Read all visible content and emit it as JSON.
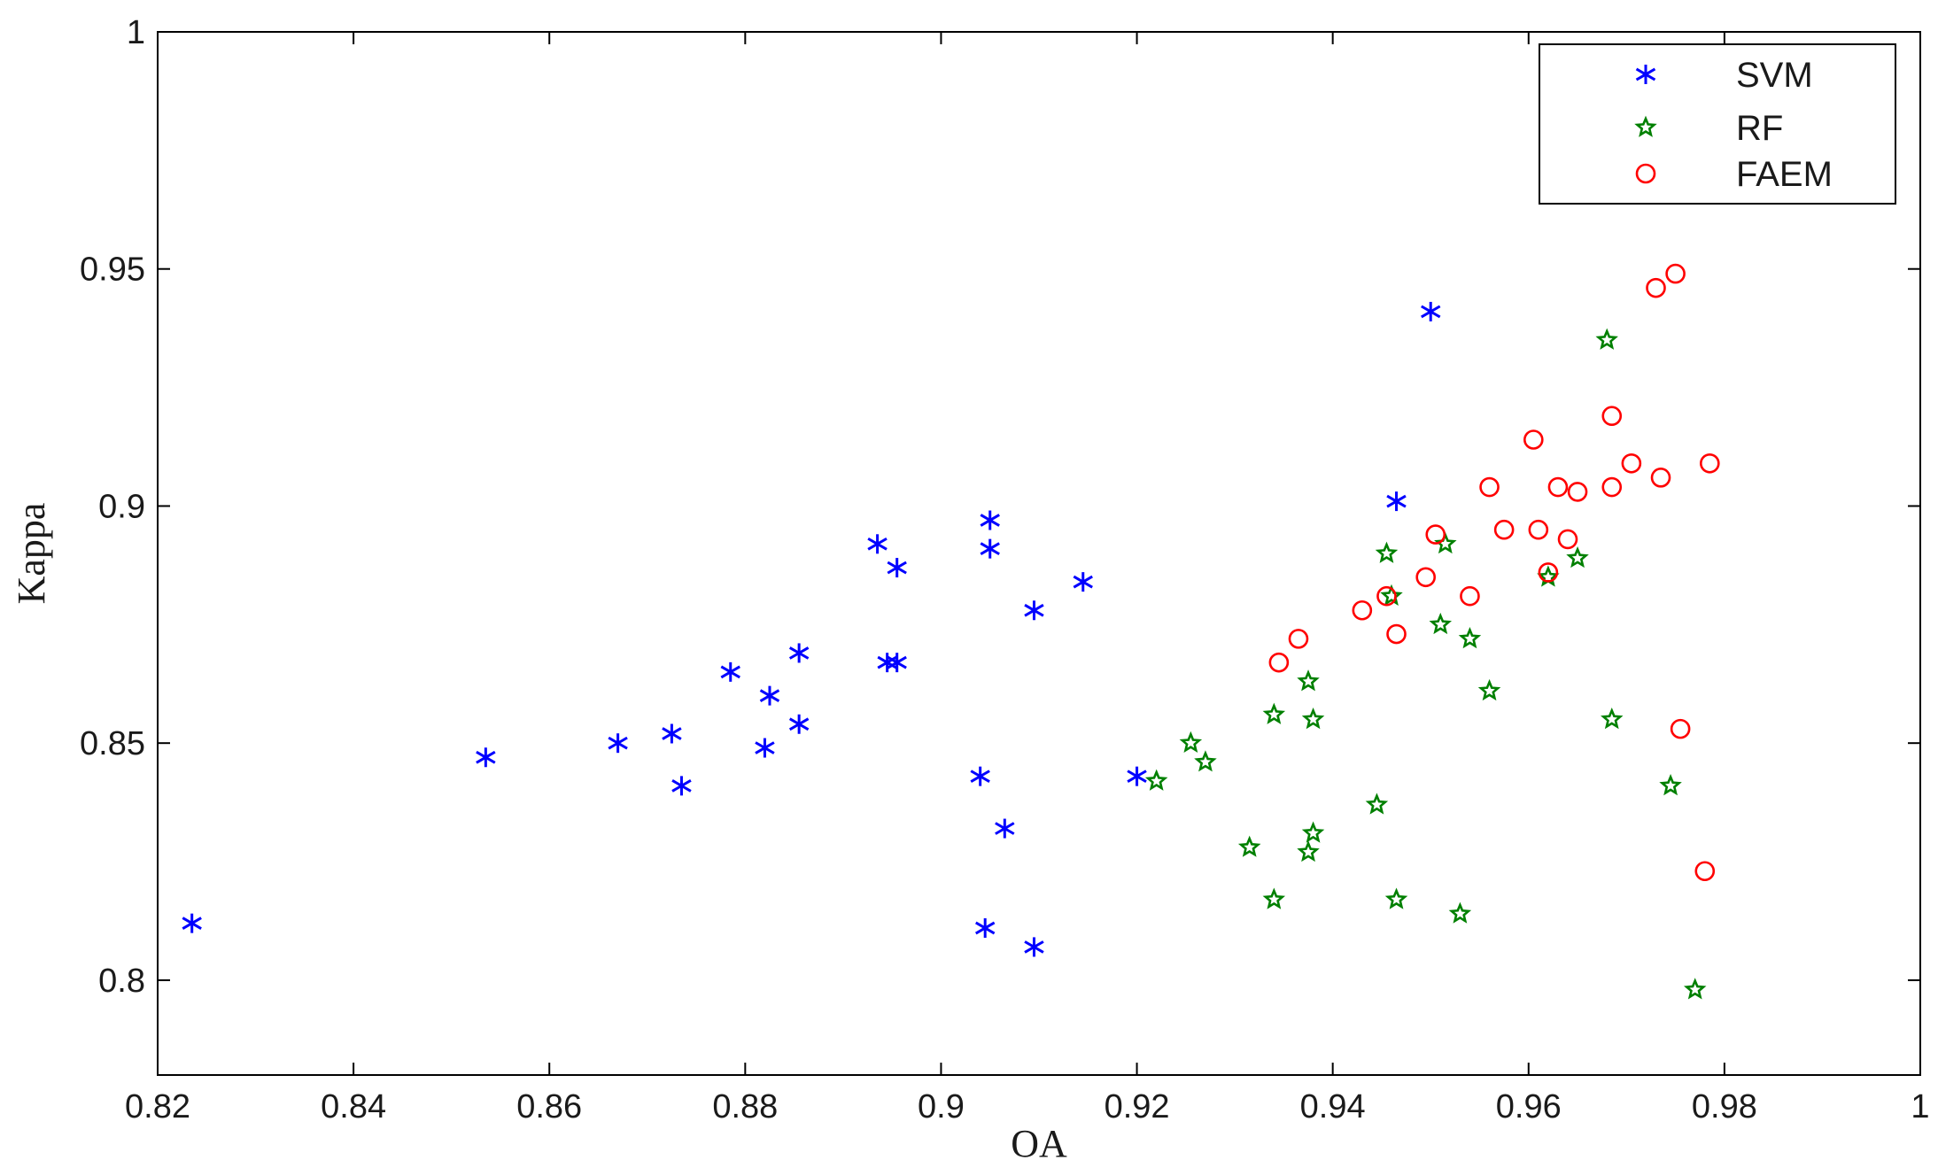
{
  "chart_data": {
    "type": "scatter",
    "title": "",
    "xlabel": "OA",
    "ylabel": "Kappa",
    "xlim": [
      0.82,
      1
    ],
    "ylim": [
      0.78,
      1
    ],
    "xticks": [
      "0.82",
      "0.84",
      "0.86",
      "0.88",
      "0.9",
      "0.92",
      "0.94",
      "0.96",
      "0.98",
      "1"
    ],
    "yticks": [
      "0.8",
      "0.85",
      "0.9",
      "0.95",
      "1"
    ],
    "grid": false,
    "legend_position": "top-right",
    "series": [
      {
        "name": "SVM",
        "marker": "asterisk",
        "color": "#0000ff",
        "points": [
          [
            0.8235,
            0.812
          ],
          [
            0.8535,
            0.847
          ],
          [
            0.867,
            0.85
          ],
          [
            0.8725,
            0.852
          ],
          [
            0.8735,
            0.841
          ],
          [
            0.8785,
            0.865
          ],
          [
            0.882,
            0.849
          ],
          [
            0.8825,
            0.86
          ],
          [
            0.8855,
            0.854
          ],
          [
            0.8855,
            0.869
          ],
          [
            0.8935,
            0.892
          ],
          [
            0.8945,
            0.867
          ],
          [
            0.8955,
            0.867
          ],
          [
            0.8955,
            0.887
          ],
          [
            0.904,
            0.843
          ],
          [
            0.905,
            0.897
          ],
          [
            0.905,
            0.891
          ],
          [
            0.9045,
            0.811
          ],
          [
            0.9065,
            0.832
          ],
          [
            0.9095,
            0.878
          ],
          [
            0.9095,
            0.807
          ],
          [
            0.9145,
            0.884
          ],
          [
            0.92,
            0.843
          ],
          [
            0.9465,
            0.901
          ],
          [
            0.95,
            0.941
          ]
        ]
      },
      {
        "name": "RF",
        "marker": "star",
        "color": "#008000",
        "points": [
          [
            0.922,
            0.842
          ],
          [
            0.9255,
            0.85
          ],
          [
            0.927,
            0.846
          ],
          [
            0.9315,
            0.828
          ],
          [
            0.934,
            0.856
          ],
          [
            0.934,
            0.817
          ],
          [
            0.9375,
            0.863
          ],
          [
            0.938,
            0.855
          ],
          [
            0.938,
            0.831
          ],
          [
            0.9375,
            0.827
          ],
          [
            0.9445,
            0.837
          ],
          [
            0.9455,
            0.89
          ],
          [
            0.946,
            0.881
          ],
          [
            0.9465,
            0.817
          ],
          [
            0.951,
            0.875
          ],
          [
            0.9515,
            0.892
          ],
          [
            0.953,
            0.814
          ],
          [
            0.954,
            0.872
          ],
          [
            0.956,
            0.861
          ],
          [
            0.962,
            0.885
          ],
          [
            0.965,
            0.889
          ],
          [
            0.968,
            0.935
          ],
          [
            0.9685,
            0.855
          ],
          [
            0.9745,
            0.841
          ],
          [
            0.977,
            0.798
          ]
        ]
      },
      {
        "name": "FAEM",
        "marker": "circle",
        "color": "#ff0000",
        "points": [
          [
            0.9345,
            0.867
          ],
          [
            0.9365,
            0.872
          ],
          [
            0.943,
            0.878
          ],
          [
            0.9455,
            0.881
          ],
          [
            0.9465,
            0.873
          ],
          [
            0.9495,
            0.885
          ],
          [
            0.9505,
            0.894
          ],
          [
            0.954,
            0.881
          ],
          [
            0.956,
            0.904
          ],
          [
            0.9575,
            0.895
          ],
          [
            0.9605,
            0.914
          ],
          [
            0.961,
            0.895
          ],
          [
            0.962,
            0.886
          ],
          [
            0.963,
            0.904
          ],
          [
            0.964,
            0.893
          ],
          [
            0.965,
            0.903
          ],
          [
            0.9685,
            0.919
          ],
          [
            0.9685,
            0.904
          ],
          [
            0.9705,
            0.909
          ],
          [
            0.973,
            0.946
          ],
          [
            0.9735,
            0.906
          ],
          [
            0.975,
            0.949
          ],
          [
            0.9755,
            0.853
          ],
          [
            0.978,
            0.823
          ],
          [
            0.9785,
            0.909
          ]
        ]
      }
    ]
  }
}
